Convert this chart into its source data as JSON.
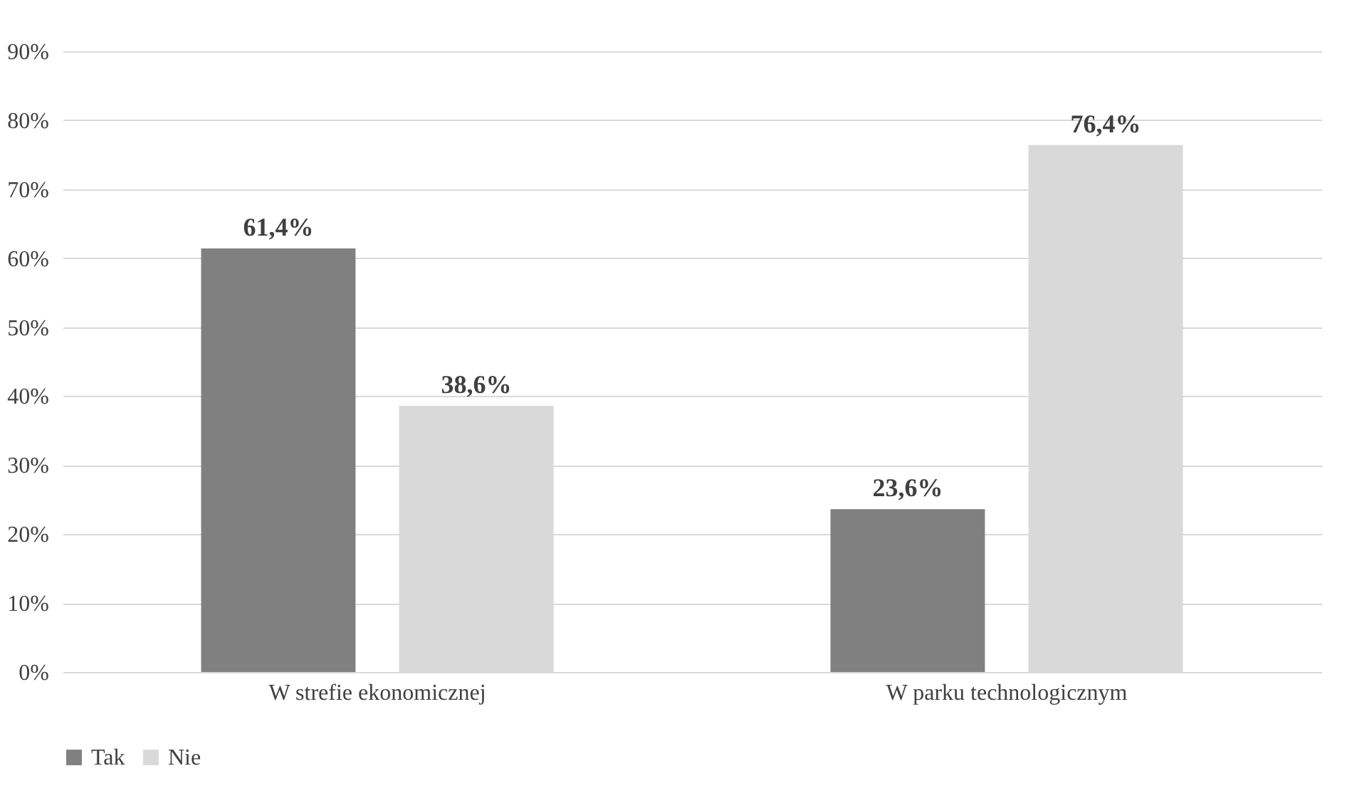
{
  "chart_data": {
    "type": "bar",
    "categories": [
      "W strefie ekonomicznej",
      "W parku technologicznym"
    ],
    "series": [
      {
        "name": "Tak",
        "color": "#808080",
        "values": [
          61.4,
          23.6
        ],
        "value_labels": [
          "61,4%",
          "23,6%"
        ]
      },
      {
        "name": "Nie",
        "color": "#d9d9d9",
        "values": [
          38.6,
          76.4
        ],
        "value_labels": [
          "38,6%",
          "76,4%"
        ]
      }
    ],
    "ylim": [
      0,
      90
    ],
    "yticks": [
      {
        "value": 0,
        "label": "0%"
      },
      {
        "value": 10,
        "label": "10%"
      },
      {
        "value": 20,
        "label": "20%"
      },
      {
        "value": 30,
        "label": "30%"
      },
      {
        "value": 40,
        "label": "40%"
      },
      {
        "value": 50,
        "label": "50%"
      },
      {
        "value": 60,
        "label": "60%"
      },
      {
        "value": 70,
        "label": "70%"
      },
      {
        "value": 80,
        "label": "80%"
      },
      {
        "value": 90,
        "label": "90%"
      }
    ],
    "grid": "y",
    "legend": "bottom"
  }
}
